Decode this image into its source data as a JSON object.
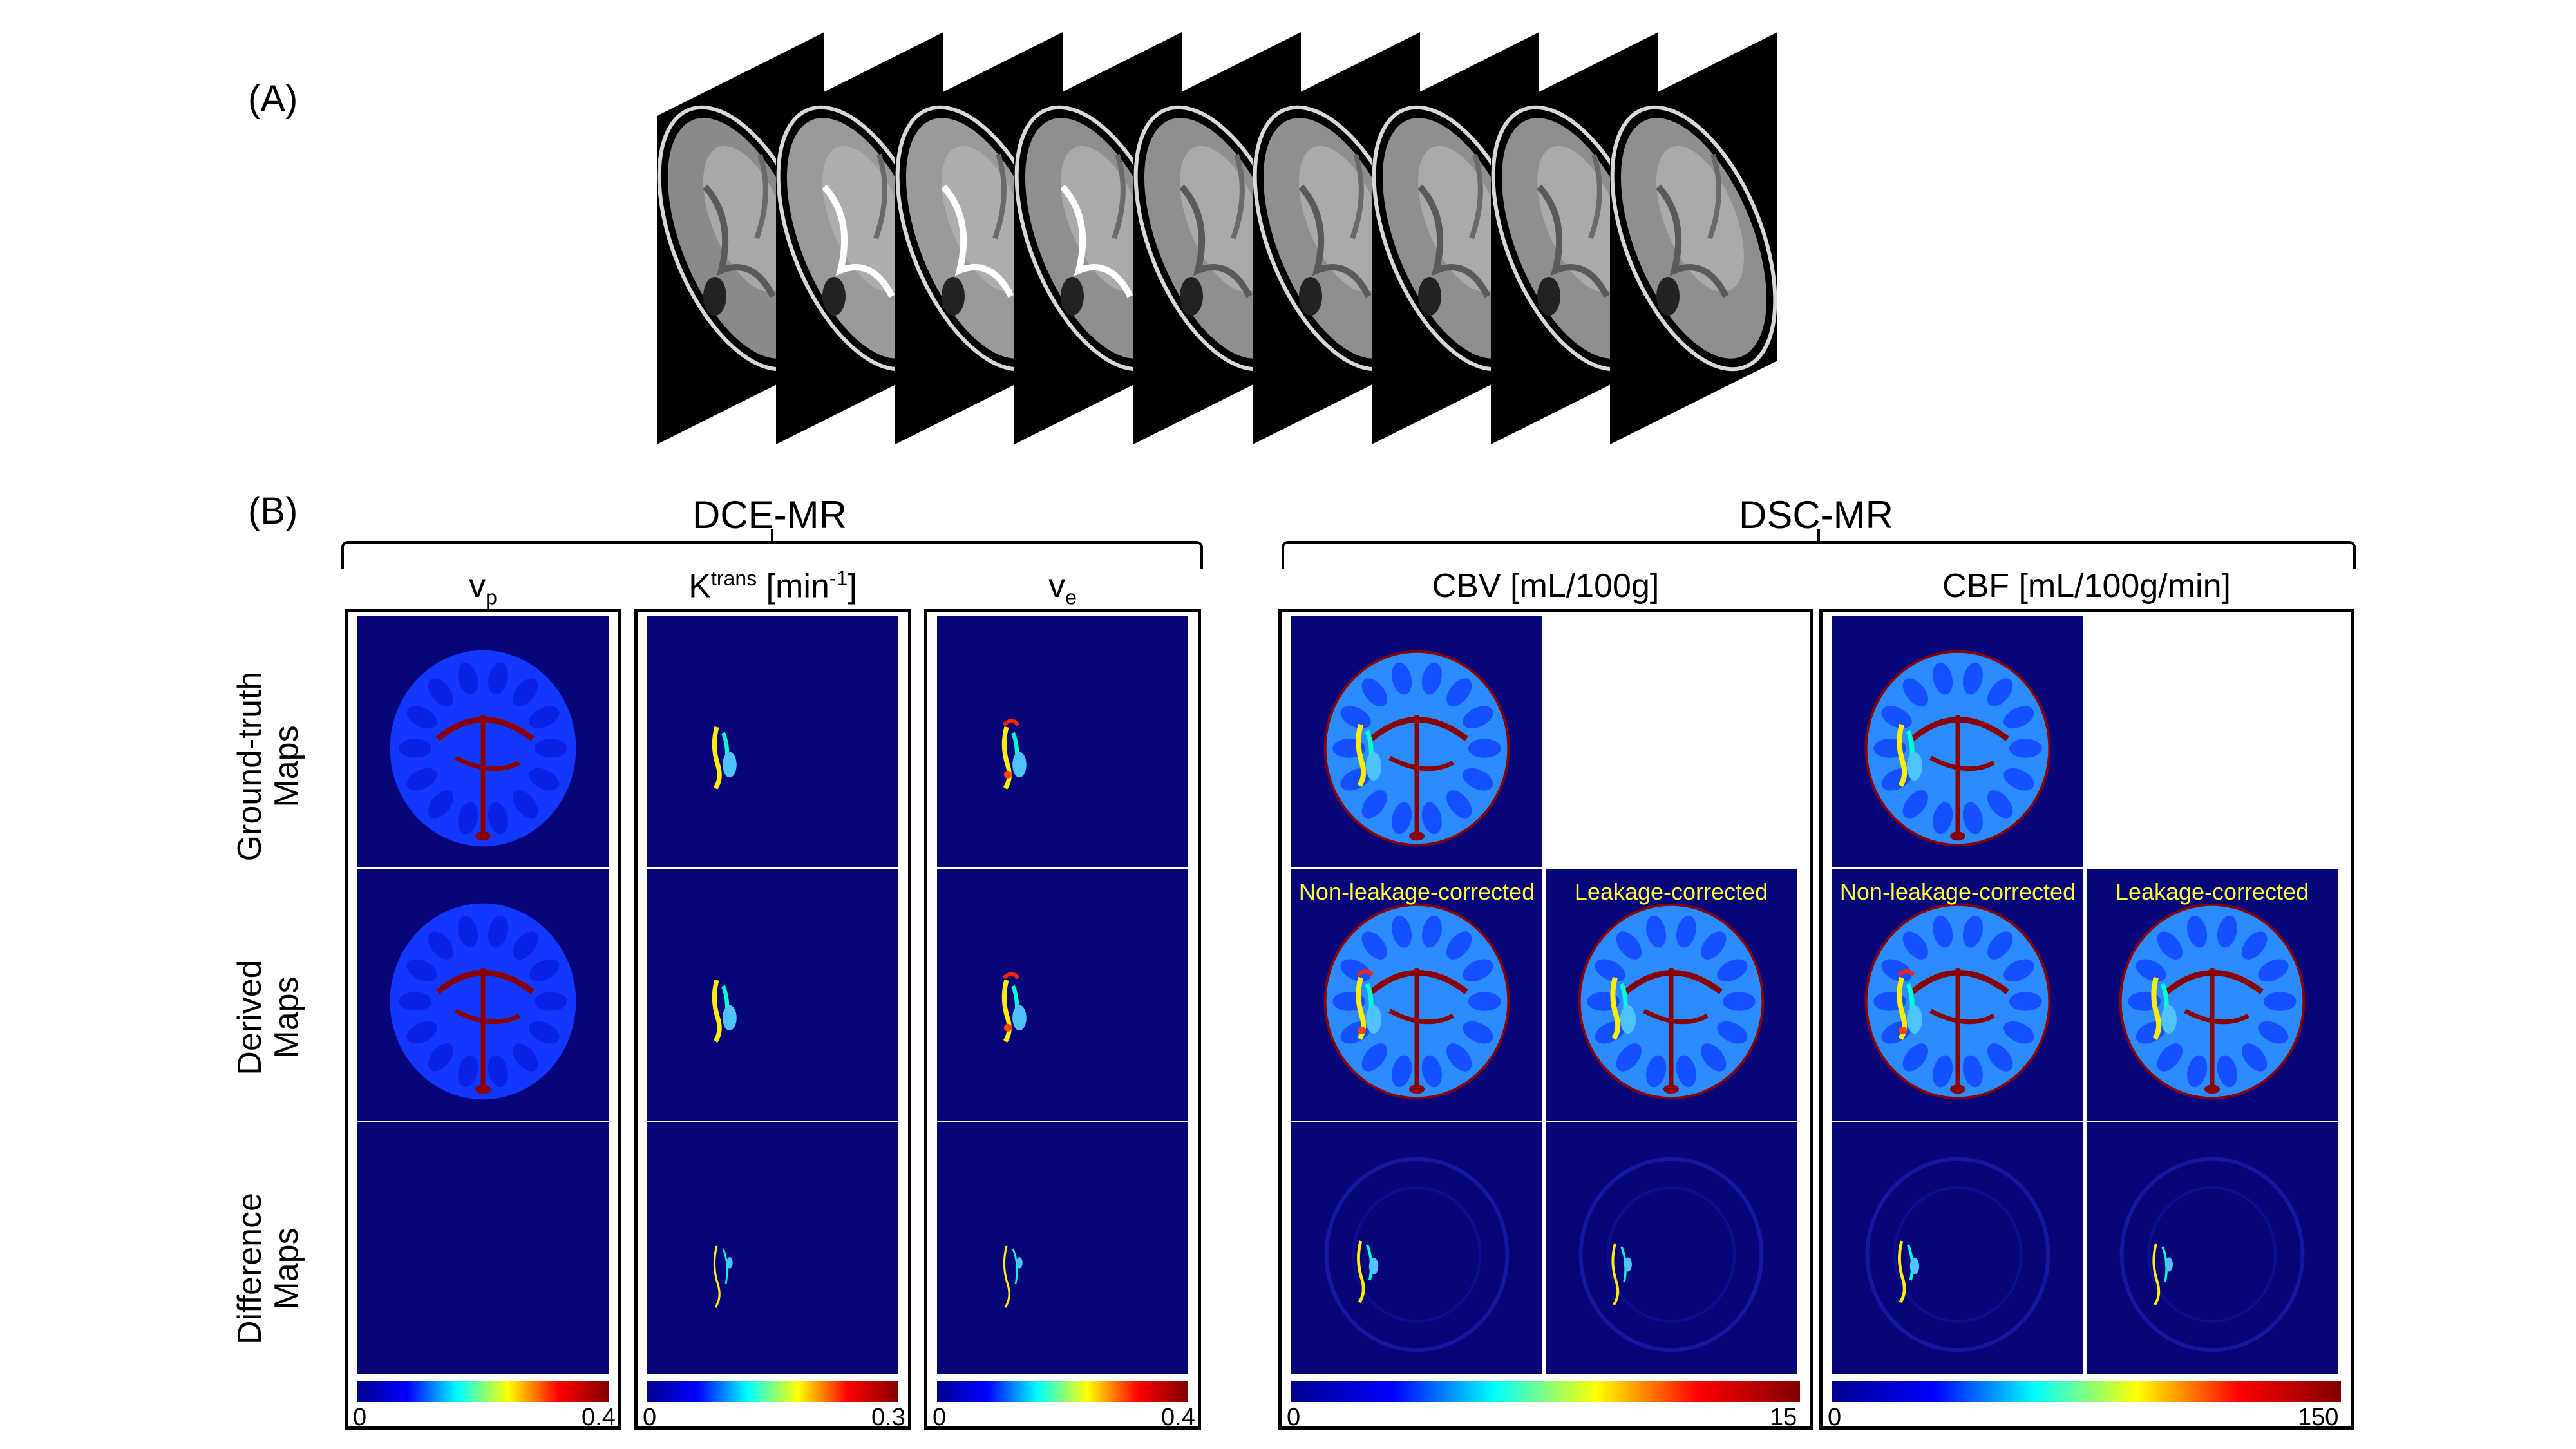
{
  "panel_a": {
    "tag": "(A)",
    "slice_count": 9
  },
  "panel_b": {
    "tag": "(B)",
    "groups": {
      "dce": "DCE-MR",
      "dsc": "DSC-MR"
    },
    "columns": {
      "vp": {
        "base": "v",
        "sub": "p"
      },
      "ktrans": {
        "base": "K",
        "sup": "trans",
        "unit_pre": " [min",
        "unit_sup": "-1",
        "unit_post": "]"
      },
      "ve": {
        "base": "v",
        "sub": "e"
      },
      "cbv": "CBV [mL/100g]",
      "cbf": "CBF [mL/100g/min]"
    },
    "rows": [
      {
        "line1": "Ground-truth",
        "line2": "Maps"
      },
      {
        "line1": "Derived",
        "line2": "Maps"
      },
      {
        "line1": "Difference",
        "line2": "Maps"
      }
    ],
    "overlays": {
      "non_leakage": "Non-leakage-corrected",
      "leakage": "Leakage-corrected"
    },
    "colorbars": {
      "vp": {
        "min": "0",
        "max": "0.4"
      },
      "ktrans": {
        "min": "0",
        "max": "0.3"
      },
      "ve": {
        "min": "0",
        "max": "0.4"
      },
      "cbv": {
        "min": "0",
        "max": "15"
      },
      "cbf": {
        "min": "0",
        "max": "150"
      }
    }
  },
  "colors": {
    "map_background": "#06067a",
    "overlay_text": "#ffff33"
  }
}
